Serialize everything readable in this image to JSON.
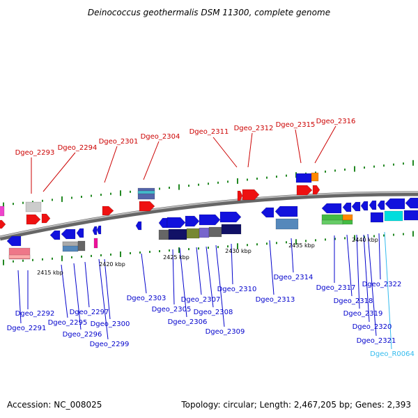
{
  "title": "Deinococcus geothermalis DSM 11300, complete genome",
  "footer": {
    "accession": "Accession: NC_008025",
    "summary": "Topology: circular; Length: 2,467,205 bp; Genes: 2,393"
  },
  "colors": {
    "top_label": "#cc0000",
    "bottom_label": "#0000cc",
    "rna_label": "#33bbee",
    "backbone": "#777777",
    "tick": "#228822"
  },
  "scale_ticks": [
    "2415 kbp",
    "2420 kbp",
    "2425 kbp",
    "2430 kbp",
    "2435 kbp",
    "2440 kbp"
  ],
  "top_genes": [
    "Dgeo_2293",
    "Dgeo_2294",
    "Dgeo_2301",
    "Dgeo_2304",
    "Dgeo_2311",
    "Dgeo_2312",
    "Dgeo_2315",
    "Dgeo_2316"
  ],
  "bottom_genes": [
    "Dgeo_2292",
    "Dgeo_2291",
    "Dgeo_2295",
    "Dgeo_2296",
    "Dgeo_2297",
    "Dgeo_2300",
    "Dgeo_2299",
    "Dgeo_2303",
    "Dgeo_2305",
    "Dgeo_2306",
    "Dgeo_2307",
    "Dgeo_2308",
    "Dgeo_2309",
    "Dgeo_2310",
    "Dgeo_2313",
    "Dgeo_2314",
    "Dgeo_2317",
    "Dgeo_2318",
    "Dgeo_2319",
    "Dgeo_2320",
    "Dgeo_2321",
    "Dgeo_2322",
    "Dgeo_R0064"
  ]
}
